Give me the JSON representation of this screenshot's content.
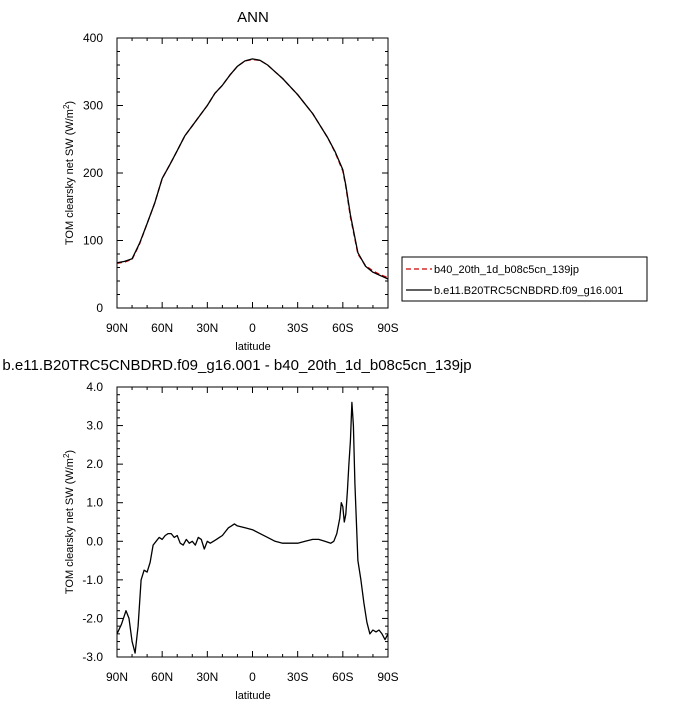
{
  "chart_data": [
    {
      "type": "line",
      "title": "ANN",
      "xlabel": "latitude",
      "ylabel": "TOM clearsky net SW (W/m",
      "ylabel_sup": "2",
      "ylabel_close": ")",
      "xlim": [
        90,
        -90
      ],
      "ylim": [
        0,
        400
      ],
      "xticks": [
        90,
        60,
        30,
        0,
        -30,
        -60,
        -90
      ],
      "xtick_labels": [
        "90N",
        "60N",
        "30N",
        "0",
        "30S",
        "60S",
        "90S"
      ],
      "yticks": [
        0,
        100,
        200,
        300,
        400
      ],
      "ytick_labels": [
        "0",
        "100",
        "200",
        "300",
        "400"
      ],
      "legend_position": "right",
      "series": [
        {
          "name": "b40_20th_1d_b08c5cn_139jp",
          "color": "#cc0000",
          "dash": "dashed",
          "x": [
            90,
            85,
            80,
            75,
            70,
            65,
            60,
            55,
            50,
            45,
            40,
            35,
            30,
            25,
            20,
            15,
            10,
            5,
            0,
            -5,
            -10,
            -15,
            -20,
            -25,
            -30,
            -35,
            -40,
            -45,
            -50,
            -55,
            -60,
            -62,
            -65,
            -70,
            -75,
            -80,
            -85,
            -90
          ],
          "y": [
            66,
            68,
            72,
            95,
            125,
            155,
            192,
            212,
            233,
            255,
            270,
            285,
            300,
            318,
            330,
            345,
            358,
            366,
            368,
            367,
            360,
            350,
            340,
            328,
            316,
            302,
            288,
            270,
            252,
            230,
            203,
            180,
            135,
            80,
            63,
            55,
            49,
            45
          ]
        },
        {
          "name": "b.e11.B20TRC5CNBDRD.f09_g16.001",
          "color": "#000000",
          "dash": "solid",
          "x": [
            90,
            85,
            80,
            75,
            70,
            65,
            60,
            55,
            50,
            45,
            40,
            35,
            30,
            25,
            20,
            15,
            10,
            5,
            0,
            -5,
            -10,
            -15,
            -20,
            -25,
            -30,
            -35,
            -40,
            -45,
            -50,
            -55,
            -60,
            -62,
            -65,
            -70,
            -75,
            -80,
            -85,
            -90
          ],
          "y": [
            67,
            69,
            73,
            96,
            125,
            155,
            192,
            212,
            233,
            255,
            270,
            285,
            300,
            318,
            330,
            345,
            358,
            366,
            369,
            367,
            360,
            350,
            340,
            328,
            316,
            302,
            288,
            270,
            252,
            231,
            205,
            182,
            138,
            82,
            62,
            53,
            48,
            43
          ]
        }
      ]
    },
    {
      "type": "line",
      "title": "b.e11.B20TRC5CNBDRD.f09_g16.001 - b40_20th_1d_b08c5cn_139jp",
      "xlabel": "latitude",
      "ylabel": "TOM clearsky net SW (W/m",
      "ylabel_sup": "2",
      "ylabel_close": ")",
      "xlim": [
        90,
        -90
      ],
      "ylim": [
        -3,
        4
      ],
      "xticks": [
        90,
        60,
        30,
        0,
        -30,
        -60,
        -90
      ],
      "xtick_labels": [
        "90N",
        "60N",
        "30N",
        "0",
        "30S",
        "60S",
        "90S"
      ],
      "yticks": [
        -3,
        -2,
        -1,
        0,
        1,
        2,
        3,
        4
      ],
      "ytick_labels": [
        "-3.0",
        "-2.0",
        "-1.0",
        "0.0",
        "1.0",
        "2.0",
        "3.0",
        "4.0"
      ],
      "series": [
        {
          "color": "#000000",
          "dash": "solid",
          "x": [
            90,
            87,
            84,
            82,
            80,
            78,
            76,
            74,
            72,
            70,
            68,
            66,
            64,
            62,
            60,
            58,
            56,
            54,
            52,
            50,
            48,
            46,
            44,
            42,
            40,
            38,
            36,
            34,
            32,
            30,
            28,
            26,
            24,
            22,
            20,
            18,
            16,
            14,
            12,
            10,
            5,
            0,
            -5,
            -10,
            -15,
            -20,
            -25,
            -30,
            -35,
            -40,
            -44,
            -48,
            -52,
            -54,
            -56,
            -58,
            -59,
            -60,
            -61,
            -62,
            -63,
            -64,
            -65,
            -66,
            -67,
            -68,
            -70,
            -72,
            -74,
            -76,
            -78,
            -80,
            -82,
            -84,
            -86,
            -88,
            -90
          ],
          "y": [
            -2.4,
            -2.15,
            -1.8,
            -2.0,
            -2.6,
            -2.9,
            -2.2,
            -1.0,
            -0.75,
            -0.8,
            -0.55,
            -0.1,
            0.0,
            0.1,
            0.05,
            0.15,
            0.2,
            0.2,
            0.1,
            0.15,
            -0.05,
            -0.1,
            0.05,
            -0.05,
            0.0,
            -0.1,
            0.1,
            0.05,
            -0.2,
            0.0,
            -0.05,
            0.0,
            0.05,
            0.1,
            0.15,
            0.25,
            0.35,
            0.4,
            0.45,
            0.4,
            0.35,
            0.3,
            0.2,
            0.1,
            0.0,
            -0.05,
            -0.05,
            -0.05,
            0.0,
            0.05,
            0.05,
            0.0,
            -0.05,
            0.0,
            0.2,
            0.6,
            1.0,
            0.9,
            0.5,
            0.7,
            1.3,
            2.0,
            2.6,
            3.6,
            3.0,
            1.5,
            -0.5,
            -1.0,
            -1.6,
            -2.1,
            -2.4,
            -2.3,
            -2.35,
            -2.3,
            -2.4,
            -2.55,
            -2.4
          ]
        }
      ]
    }
  ]
}
